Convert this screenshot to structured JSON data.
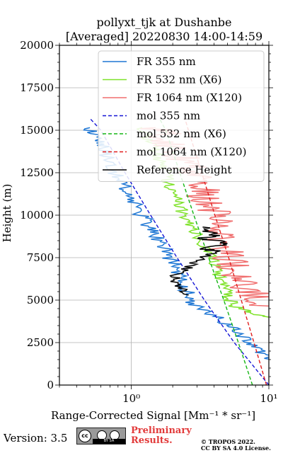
{
  "header": {
    "title_line1": "pollyxt_tjk at Dushanbe",
    "title_line2": "[Averaged] 20220830 14:00-14:59"
  },
  "footer": {
    "version": "Version: 3.5",
    "cc_badge": "cc",
    "cc_strip": "BY SA",
    "preliminary_line1": "Preliminary",
    "preliminary_line2": "Results.",
    "copyright_line1": "© TROPOS 2022.",
    "copyright_line2": "CC BY SA 4.0 License."
  },
  "chart_data": {
    "type": "line",
    "xlabel": "Range-Corrected Signal [Mm⁻¹ * sr⁻¹]",
    "ylabel": "Height (m)",
    "xscale": "log",
    "xlim": [
      0.3,
      10
    ],
    "ylim": [
      0,
      20000
    ],
    "x_ticks": [
      {
        "value": 1,
        "label": "10⁰"
      },
      {
        "value": 10,
        "label": "10¹"
      }
    ],
    "y_ticks": [
      0,
      2500,
      5000,
      7500,
      10000,
      12500,
      15000,
      17500,
      20000
    ],
    "y_tick_labels": [
      "0",
      "2500",
      "5000",
      "7500",
      "10000",
      "12500",
      "15000",
      "17500",
      "20000"
    ],
    "grid": true,
    "legend_position": "top-right",
    "series": [
      {
        "name": "FR 355 nm",
        "color": "#1f77d4",
        "style": "solid",
        "noise": 0.06,
        "points": [
          [
            10,
            1500
          ],
          [
            8.5,
            2000
          ],
          [
            7,
            2600
          ],
          [
            5.5,
            3300
          ],
          [
            4.3,
            3900
          ],
          [
            3.3,
            4400
          ],
          [
            2.8,
            4800
          ],
          [
            2.6,
            5300
          ],
          [
            2.4,
            6000
          ],
          [
            2.2,
            6700
          ],
          [
            1.95,
            7400
          ],
          [
            1.72,
            8000
          ],
          [
            1.5,
            8800
          ],
          [
            1.32,
            9500
          ],
          [
            1.15,
            10200
          ],
          [
            1.0,
            11000
          ],
          [
            0.88,
            11700
          ],
          [
            0.78,
            12400
          ],
          [
            0.7,
            13100
          ],
          [
            0.62,
            13900
          ],
          [
            0.56,
            14600
          ],
          [
            0.5,
            15150
          ]
        ]
      },
      {
        "name": "FR 532 nm (X6)",
        "color": "#7fe22a",
        "style": "solid",
        "noise": 0.05,
        "points": [
          [
            10,
            4000
          ],
          [
            8,
            4150
          ],
          [
            6.5,
            4400
          ],
          [
            5.5,
            4700
          ],
          [
            5.0,
            5200
          ],
          [
            4.6,
            6000
          ],
          [
            4.2,
            6800
          ],
          [
            3.8,
            7600
          ],
          [
            3.3,
            8300
          ],
          [
            2.9,
            9100
          ],
          [
            2.5,
            9800
          ],
          [
            2.2,
            10600
          ],
          [
            2.0,
            11400
          ],
          [
            1.85,
            12000
          ],
          [
            1.75,
            12600
          ],
          [
            1.6,
            13300
          ],
          [
            1.45,
            14000
          ],
          [
            1.3,
            14700
          ],
          [
            1.2,
            15150
          ]
        ]
      },
      {
        "name": "FR 1064 nm (X120)",
        "color": "#f06e6e",
        "style": "solid",
        "noise": 0.14,
        "points": [
          [
            10,
            4500
          ],
          [
            8.2,
            5200
          ],
          [
            7.0,
            5800
          ],
          [
            6.0,
            6600
          ],
          [
            5.2,
            7400
          ],
          [
            4.6,
            8200
          ],
          [
            4.3,
            9000
          ],
          [
            4.0,
            9800
          ],
          [
            3.8,
            10500
          ],
          [
            3.4,
            11200
          ],
          [
            3.1,
            11900
          ],
          [
            2.8,
            12500
          ],
          [
            2.5,
            13100
          ],
          [
            2.2,
            13700
          ],
          [
            1.9,
            14300
          ],
          [
            1.7,
            14800
          ],
          [
            1.5,
            15150
          ]
        ]
      },
      {
        "name": "mol 355 nm",
        "color": "#1515d6",
        "style": "dashed",
        "noise": 0,
        "points": [
          [
            10,
            0
          ],
          [
            5.6,
            2500
          ],
          [
            3.4,
            5000
          ],
          [
            2.15,
            7500
          ],
          [
            1.38,
            10000
          ],
          [
            0.9,
            12500
          ],
          [
            0.6,
            15000
          ],
          [
            0.5,
            15700
          ]
        ]
      },
      {
        "name": "mol 532 nm (X6)",
        "color": "#15b615",
        "style": "dashed",
        "noise": 0,
        "points": [
          [
            7.6,
            0
          ],
          [
            6.0,
            2500
          ],
          [
            4.7,
            5000
          ],
          [
            3.65,
            7500
          ],
          [
            2.85,
            10000
          ],
          [
            2.25,
            12500
          ],
          [
            1.78,
            15000
          ],
          [
            1.6,
            15700
          ]
        ]
      },
      {
        "name": "mol 1064 nm (X120)",
        "color": "#e01e1e",
        "style": "dashed",
        "noise": 0,
        "points": [
          [
            9.6,
            0
          ],
          [
            7.8,
            2500
          ],
          [
            6.3,
            5000
          ],
          [
            5.1,
            7500
          ],
          [
            4.05,
            10000
          ],
          [
            3.25,
            12500
          ],
          [
            2.6,
            15000
          ],
          [
            2.45,
            15700
          ]
        ]
      },
      {
        "name": "Reference Height",
        "color": "#000000",
        "style": "solid",
        "noise": 0.05,
        "points": [
          [
            2.45,
            5300
          ],
          [
            2.2,
            5900
          ],
          [
            2.05,
            6500
          ],
          [
            2.6,
            6900
          ],
          [
            3.1,
            7400
          ],
          [
            3.3,
            8000
          ],
          [
            3.0,
            8600
          ],
          [
            4.2,
            8800
          ],
          [
            4.8,
            8300
          ],
          [
            4.1,
            7900
          ],
          [
            4.6,
            8500
          ],
          [
            3.6,
            9000
          ],
          [
            3.3,
            9300
          ]
        ]
      }
    ]
  }
}
